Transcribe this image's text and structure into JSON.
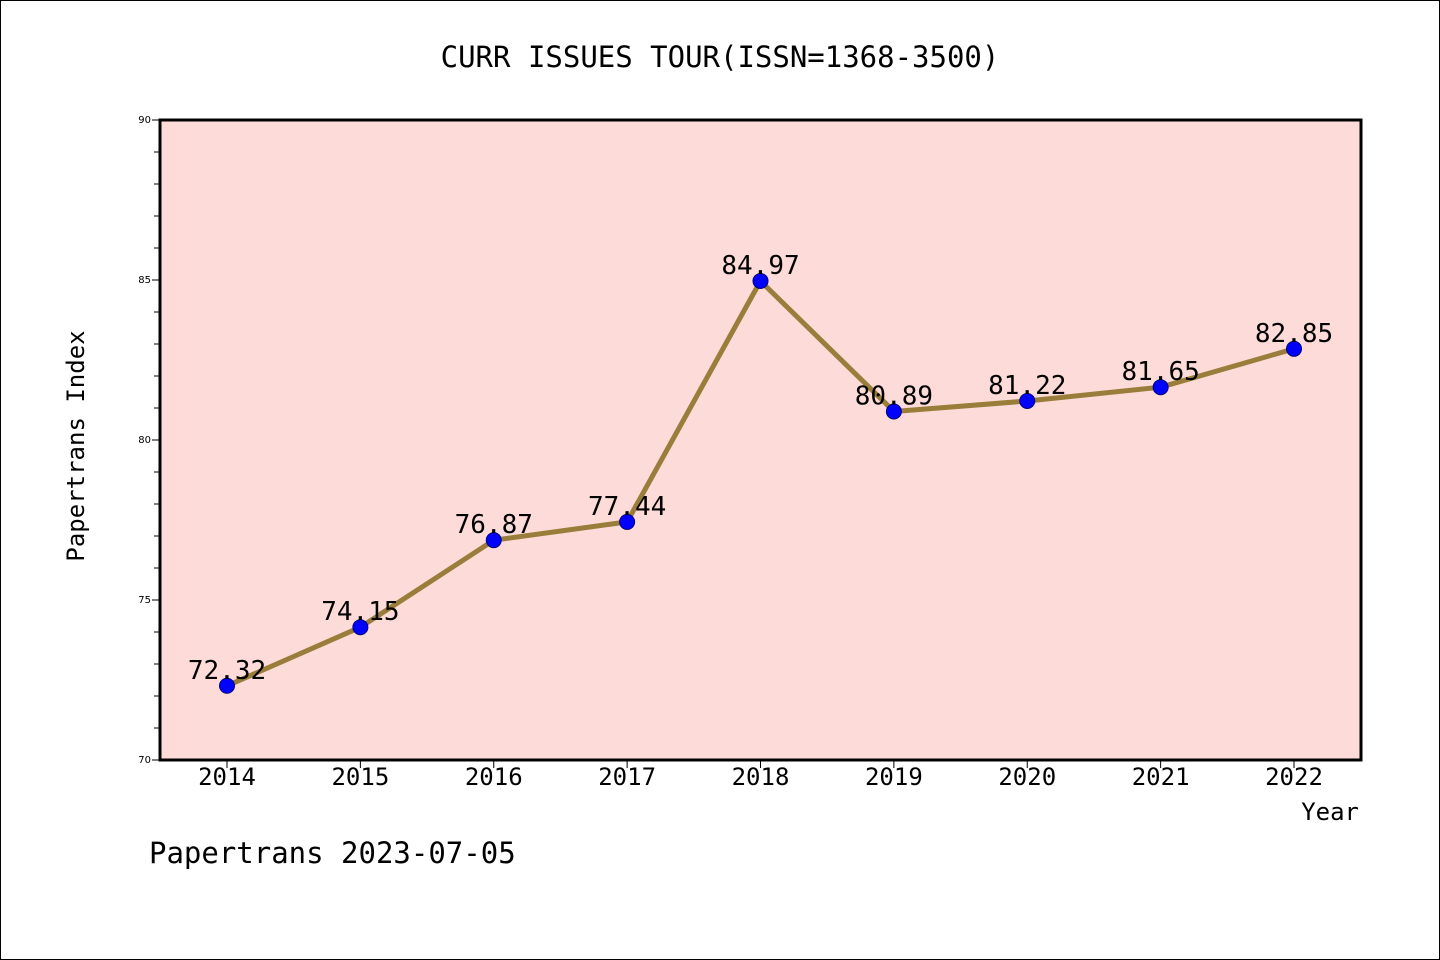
{
  "chart_data": {
    "type": "line",
    "title": "CURR ISSUES TOUR(ISSN=1368-3500)",
    "xlabel": "Year",
    "ylabel": "Papertrans Index",
    "categories": [
      "2014",
      "2015",
      "2016",
      "2017",
      "2018",
      "2019",
      "2020",
      "2021",
      "2022"
    ],
    "series": [
      {
        "values": [
          72.32,
          74.15,
          76.87,
          77.44,
          84.97,
          80.89,
          81.22,
          81.65,
          82.85
        ],
        "labels": [
          "72.32",
          "74.15",
          "76.87",
          "77.44",
          "84.97",
          "80.89",
          "81.22",
          "81.65",
          "82.85"
        ]
      }
    ],
    "ylim": [
      70,
      90
    ],
    "yticks": [
      "70",
      "75",
      "80",
      "85",
      "90"
    ],
    "grid": false,
    "colors": {
      "plot_background": "#fddbd8",
      "line": "#9a7d3a",
      "marker": "#0000ff",
      "marker_edge": "#00007a"
    }
  },
  "footer": {
    "text": "Papertrans 2023-07-05"
  }
}
